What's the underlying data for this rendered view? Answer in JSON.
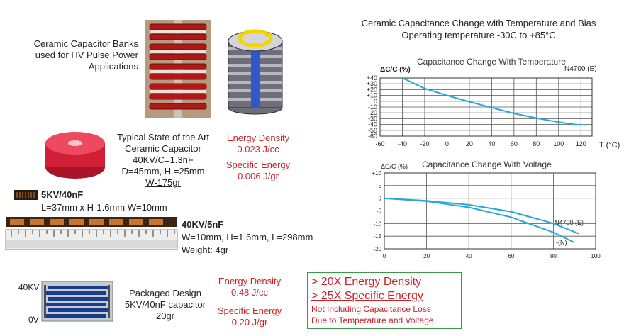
{
  "left": {
    "banks_caption": [
      "Ceramic Capacitor Banks",
      "used for HV Pulse Power",
      "Applications"
    ],
    "typical": {
      "lines": [
        "Typical State of the Art",
        "Ceramic Capacitor",
        "40KV/C=1.3nF",
        "D=45mm, H =25mm"
      ],
      "weight": "W-175gr"
    },
    "typical_energy": {
      "density_label": "Energy Density",
      "density_value": "0.023  J/cc",
      "specific_label": "Specific Energy",
      "specific_value": "0.006 J/gr"
    },
    "small_cap": {
      "title": "5KV/40nF",
      "dims": "L=37mm x H-1.6mm W=10mm"
    },
    "strip_cap": {
      "title": "40KV/5nF",
      "dims": "W=10mm, H=1.6mm, L=298mm",
      "weight": "Weight: 4gr"
    },
    "packaged": {
      "label_top": "40KV",
      "label_bottom": "0V",
      "lines": [
        "Packaged Design",
        "5KV/40nF capacitor"
      ],
      "weight": "20gr"
    },
    "packaged_energy": {
      "density_label": "Energy Density",
      "density_value": "0.48  J/cc",
      "specific_label": "Specific Energy",
      "specific_value": "0.20 J/gr"
    },
    "summary": {
      "line1": "> 20X Energy Density",
      "line2": "> 25X Specific Energy",
      "line3": "Not Including Capacitance Loss",
      "line4": "Due to Temperature  and Voltage"
    }
  },
  "right": {
    "heading": [
      "Ceramic Capacitance Change with Temperature and Bias",
      "Operating temperature -30C to +85°C"
    ]
  },
  "colors": {
    "accent_red": "#c8242a",
    "curve": "#2aa7d8",
    "box_border": "#3a9a4a"
  },
  "chart_data": [
    {
      "type": "line",
      "title": "Capacitance Change With Temperature",
      "ylabel": "ΔC/C (%)",
      "xlabel": "T (°C)",
      "x_ticks": [
        -60,
        -40,
        -20,
        0,
        20,
        40,
        60,
        80,
        100,
        120
      ],
      "y_ticks": [
        40,
        30,
        20,
        10,
        0,
        -10,
        -20,
        -30,
        -40,
        -50,
        -60
      ],
      "y_tick_labels": [
        "+40",
        "+30",
        "+20",
        "+10",
        "0",
        "-10",
        "-20",
        "-30",
        "-40",
        "-50",
        "-60"
      ],
      "xlim": [
        -60,
        130
      ],
      "ylim": [
        -60,
        40
      ],
      "grid": true,
      "series": [
        {
          "name": "N4700 (E)",
          "x": [
            -40,
            -20,
            0,
            20,
            40,
            60,
            80,
            100,
            115,
            125
          ],
          "y": [
            40,
            22,
            10,
            -1,
            -11,
            -21,
            -29,
            -36,
            -40,
            -41
          ]
        }
      ]
    },
    {
      "type": "line",
      "title": "Capacitance  Change With Voltage",
      "ylabel": "ΔC/C (%)",
      "x_ticks": [
        0,
        20,
        40,
        60,
        80,
        100
      ],
      "y_ticks": [
        10,
        5,
        0,
        -5,
        -10,
        -15,
        -20
      ],
      "y_tick_labels": [
        "+10",
        "+5",
        "0",
        "-5",
        "-10",
        "-15",
        "-20"
      ],
      "xlim": [
        0,
        100
      ],
      "ylim": [
        -20,
        10
      ],
      "grid": true,
      "series": [
        {
          "name": "N4700 (E)",
          "x": [
            0,
            20,
            40,
            60,
            80,
            92
          ],
          "y": [
            0,
            -1,
            -2.6,
            -5.3,
            -10,
            -14
          ]
        },
        {
          "name": "-(N)",
          "x": [
            0,
            20,
            40,
            60,
            80,
            90
          ],
          "y": [
            0,
            -1.2,
            -3.6,
            -7.5,
            -13.5,
            -17.5
          ]
        }
      ]
    }
  ]
}
